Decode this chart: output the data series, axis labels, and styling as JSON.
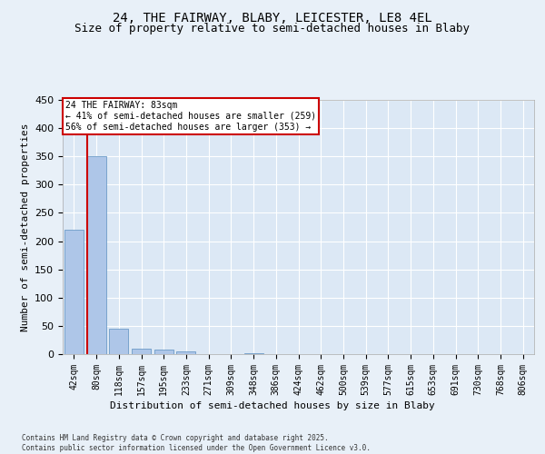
{
  "title_line1": "24, THE FAIRWAY, BLABY, LEICESTER, LE8 4EL",
  "title_line2": "Size of property relative to semi-detached houses in Blaby",
  "xlabel": "Distribution of semi-detached houses by size in Blaby",
  "ylabel": "Number of semi-detached properties",
  "categories": [
    "42sqm",
    "80sqm",
    "118sqm",
    "157sqm",
    "195sqm",
    "233sqm",
    "271sqm",
    "309sqm",
    "348sqm",
    "386sqm",
    "424sqm",
    "462sqm",
    "500sqm",
    "539sqm",
    "577sqm",
    "615sqm",
    "653sqm",
    "691sqm",
    "730sqm",
    "768sqm",
    "806sqm"
  ],
  "values": [
    220,
    350,
    45,
    10,
    8,
    5,
    0,
    0,
    2,
    0,
    0,
    0,
    0,
    0,
    0,
    0,
    0,
    0,
    0,
    0,
    0
  ],
  "bar_color": "#aec6e8",
  "bar_edge_color": "#5a8fc0",
  "property_bin_index": 1,
  "red_line_color": "#cc0000",
  "annotation_text": "24 THE FAIRWAY: 83sqm\n← 41% of semi-detached houses are smaller (259)\n56% of semi-detached houses are larger (353) →",
  "annotation_box_color": "#ffffff",
  "annotation_box_edge": "#cc0000",
  "ylim": [
    0,
    450
  ],
  "yticks": [
    0,
    50,
    100,
    150,
    200,
    250,
    300,
    350,
    400,
    450
  ],
  "footer": "Contains HM Land Registry data © Crown copyright and database right 2025.\nContains public sector information licensed under the Open Government Licence v3.0.",
  "bg_color": "#e8f0f8",
  "plot_bg_color": "#dce8f5",
  "grid_color": "#ffffff",
  "title_fontsize": 10,
  "subtitle_fontsize": 9,
  "tick_fontsize": 7,
  "label_fontsize": 8,
  "footer_fontsize": 5.5
}
